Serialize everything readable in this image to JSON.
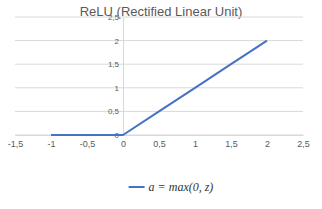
{
  "chart_data": {
    "type": "line",
    "title": "ReLU (Rectified Linear Unit)",
    "x": [
      -1,
      -0.5,
      0,
      0.5,
      1,
      1.5,
      2
    ],
    "series": [
      {
        "name": "a = max(0, z)",
        "color": "#4472c4",
        "values": [
          0,
          0,
          0,
          0.5,
          1,
          1.5,
          2
        ]
      }
    ],
    "xlim": [
      -1.5,
      2.5
    ],
    "xticks": [
      {
        "value": -1.5,
        "label": "-1,5"
      },
      -1,
      {
        "value": -0.5,
        "label": "-0,5"
      },
      0,
      {
        "value": 0.5,
        "label": "0,5"
      },
      1,
      {
        "value": 1.5,
        "label": "1,5"
      },
      2,
      {
        "value": 2.5,
        "label": "2,5"
      }
    ],
    "ylim": [
      0,
      2.5
    ],
    "yticks": [
      0,
      {
        "value": 0.5,
        "label": "0,5"
      },
      1,
      {
        "value": 1.5,
        "label": "1,5"
      },
      2,
      {
        "value": 2.5,
        "label": "2,5"
      }
    ],
    "grid": true,
    "legend": "bottom"
  }
}
